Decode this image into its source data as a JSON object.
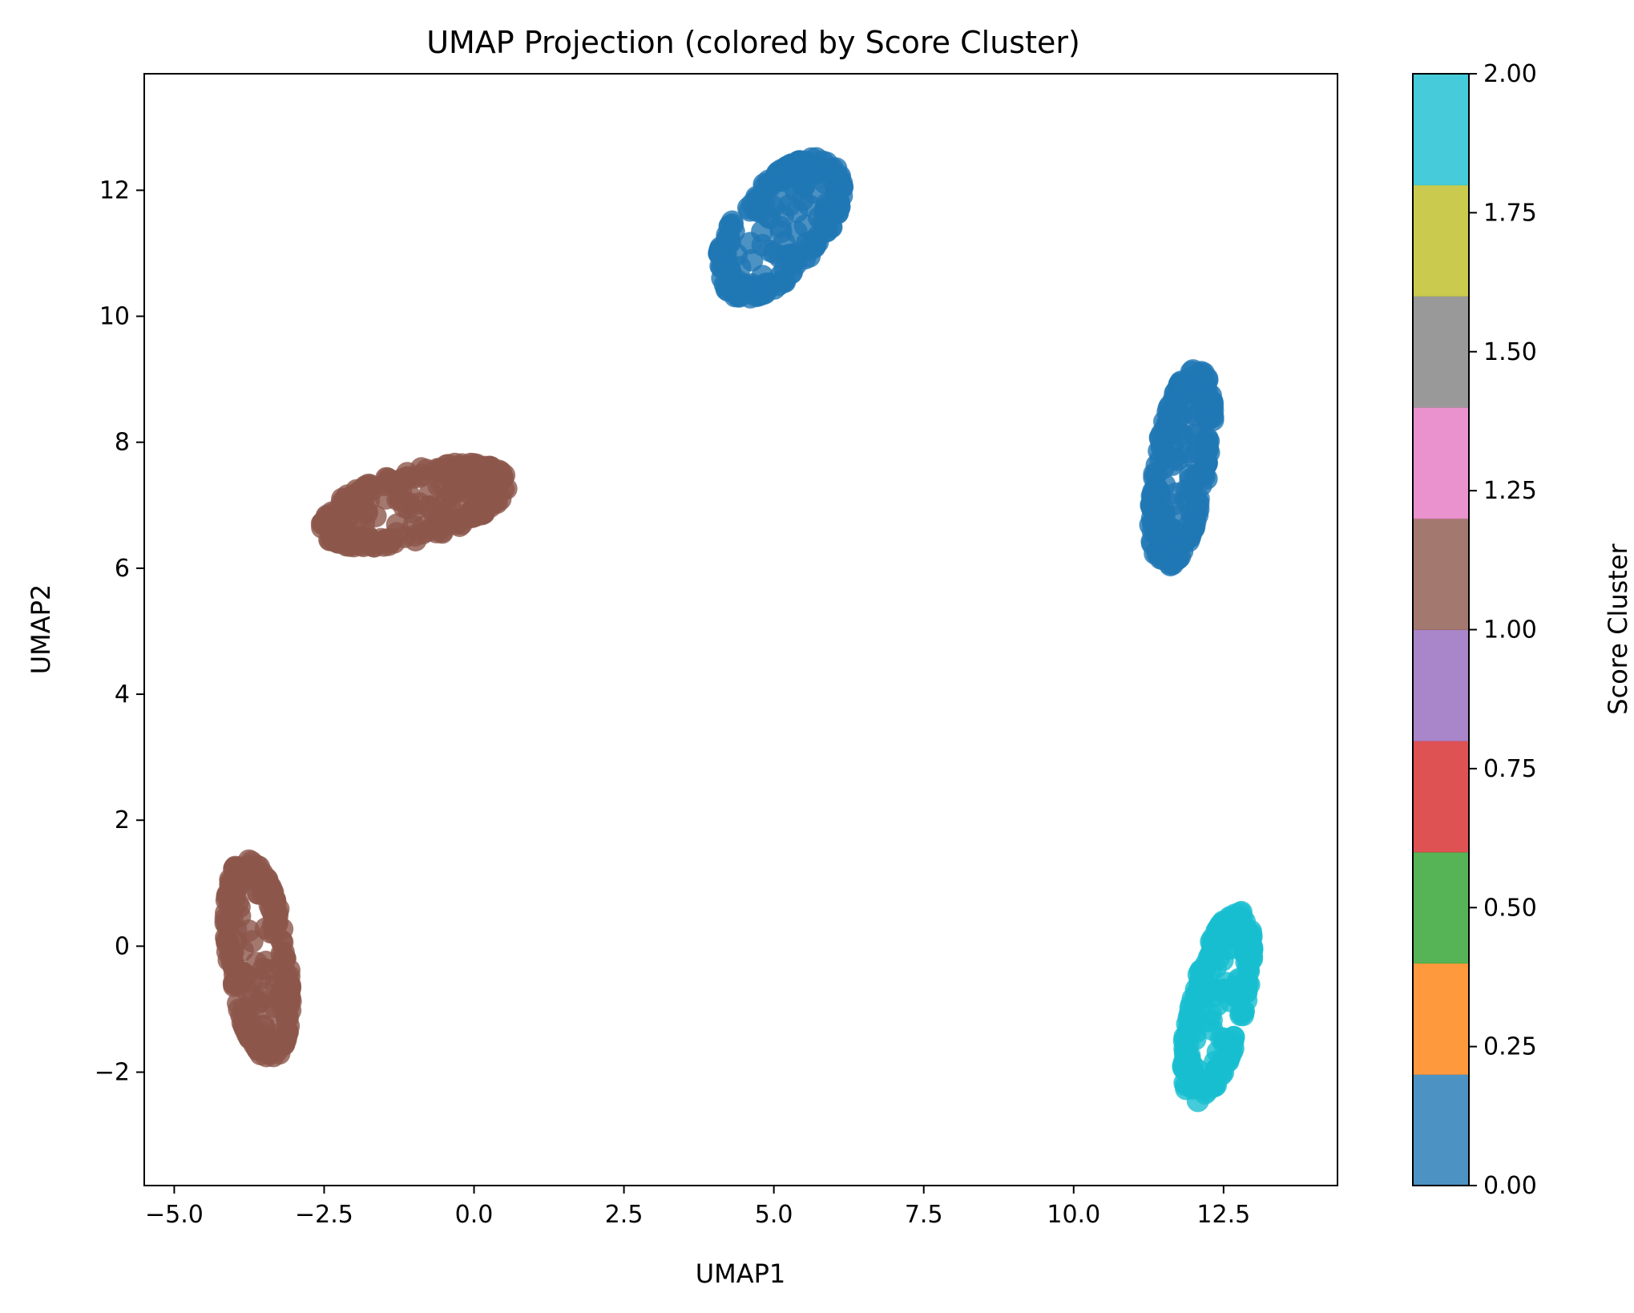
{
  "chart_data": {
    "type": "scatter",
    "title": "UMAP Projection (colored by Score Cluster)",
    "xlabel": "UMAP1",
    "ylabel": "UMAP2",
    "xlim": [
      -5.5,
      14.4
    ],
    "ylim": [
      -3.8,
      13.85
    ],
    "xticks": [
      -5.0,
      -2.5,
      0.0,
      2.5,
      5.0,
      7.5,
      10.0,
      12.5
    ],
    "xtick_labels": [
      "−5.0",
      "−2.5",
      "0.0",
      "2.5",
      "5.0",
      "7.5",
      "10.0",
      "12.5"
    ],
    "yticks": [
      -2,
      0,
      2,
      4,
      6,
      8,
      10,
      12
    ],
    "ytick_labels": [
      "−2",
      "0",
      "2",
      "4",
      "6",
      "8",
      "10",
      "12"
    ],
    "grid": false,
    "clusters": [
      {
        "score_cluster": 1,
        "center": [
          -1.0,
          7.0
        ],
        "spread": [
          1.6,
          0.55
        ],
        "angle_deg": 14,
        "count": 260
      },
      {
        "score_cluster": 1,
        "center": [
          -3.6,
          -0.2
        ],
        "spread": [
          0.5,
          1.6
        ],
        "angle_deg": 8,
        "count": 220
      },
      {
        "score_cluster": 0,
        "center": [
          5.1,
          11.4
        ],
        "spread": [
          0.7,
          1.35
        ],
        "angle_deg": -42,
        "count": 240
      },
      {
        "score_cluster": 0,
        "center": [
          11.8,
          7.6
        ],
        "spread": [
          0.45,
          1.6
        ],
        "angle_deg": -10,
        "count": 220
      },
      {
        "score_cluster": 2,
        "center": [
          12.4,
          -0.95
        ],
        "spread": [
          0.45,
          1.55
        ],
        "angle_deg": -14,
        "count": 230
      }
    ],
    "colormap": {
      "name": "tab10",
      "label": "Score Cluster",
      "range": [
        0.0,
        2.0
      ],
      "ticks": [
        0.0,
        0.25,
        0.5,
        0.75,
        1.0,
        1.25,
        1.5,
        1.75,
        2.0
      ],
      "tick_labels": [
        "0.00",
        "0.25",
        "0.50",
        "0.75",
        "1.00",
        "1.25",
        "1.50",
        "1.75",
        "2.00"
      ],
      "colors": [
        "#1f77b4",
        "#ff7f0e",
        "#2ca02c",
        "#d62728",
        "#9467bd",
        "#8c564b",
        "#e377c2",
        "#7f7f7f",
        "#bcbd22",
        "#17becf"
      ],
      "point_colors": {
        "0": "#1f77b4",
        "1": "#8c564b",
        "2": "#17becf"
      }
    }
  }
}
